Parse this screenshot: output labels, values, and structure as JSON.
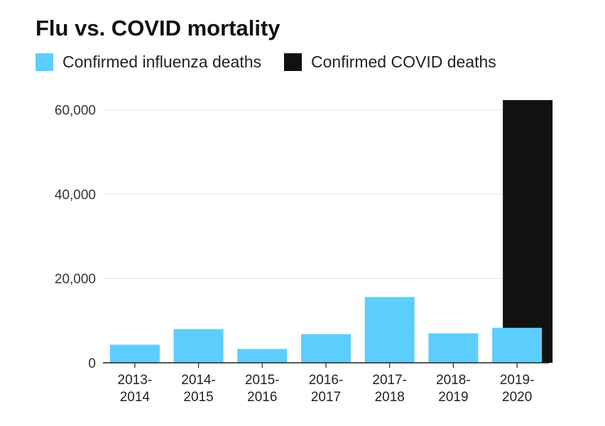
{
  "chart_data": {
    "type": "bar",
    "title": "Flu vs. COVID mortality",
    "categories": [
      [
        "2013-",
        "2014"
      ],
      [
        "2014-",
        "2015"
      ],
      [
        "2015-",
        "2016"
      ],
      [
        "2016-",
        "2017"
      ],
      [
        "2017-",
        "2018"
      ],
      [
        "2018-",
        "2019"
      ],
      [
        "2019-",
        "2020"
      ]
    ],
    "series": [
      {
        "name": "Confirmed influenza deaths",
        "color": "#5ccefc",
        "values": [
          4300,
          8000,
          3300,
          6800,
          15600,
          7000,
          8300
        ]
      },
      {
        "name": "Confirmed COVID deaths",
        "color": "#111111",
        "values": [
          null,
          null,
          null,
          null,
          null,
          null,
          62300
        ]
      }
    ],
    "yticks": [
      0,
      20000,
      40000,
      60000
    ],
    "ytick_labels": [
      "0",
      "20,000",
      "40,000",
      "60,000"
    ],
    "ylim": [
      0,
      62300
    ],
    "grid": true,
    "legend_position": "top-left"
  }
}
